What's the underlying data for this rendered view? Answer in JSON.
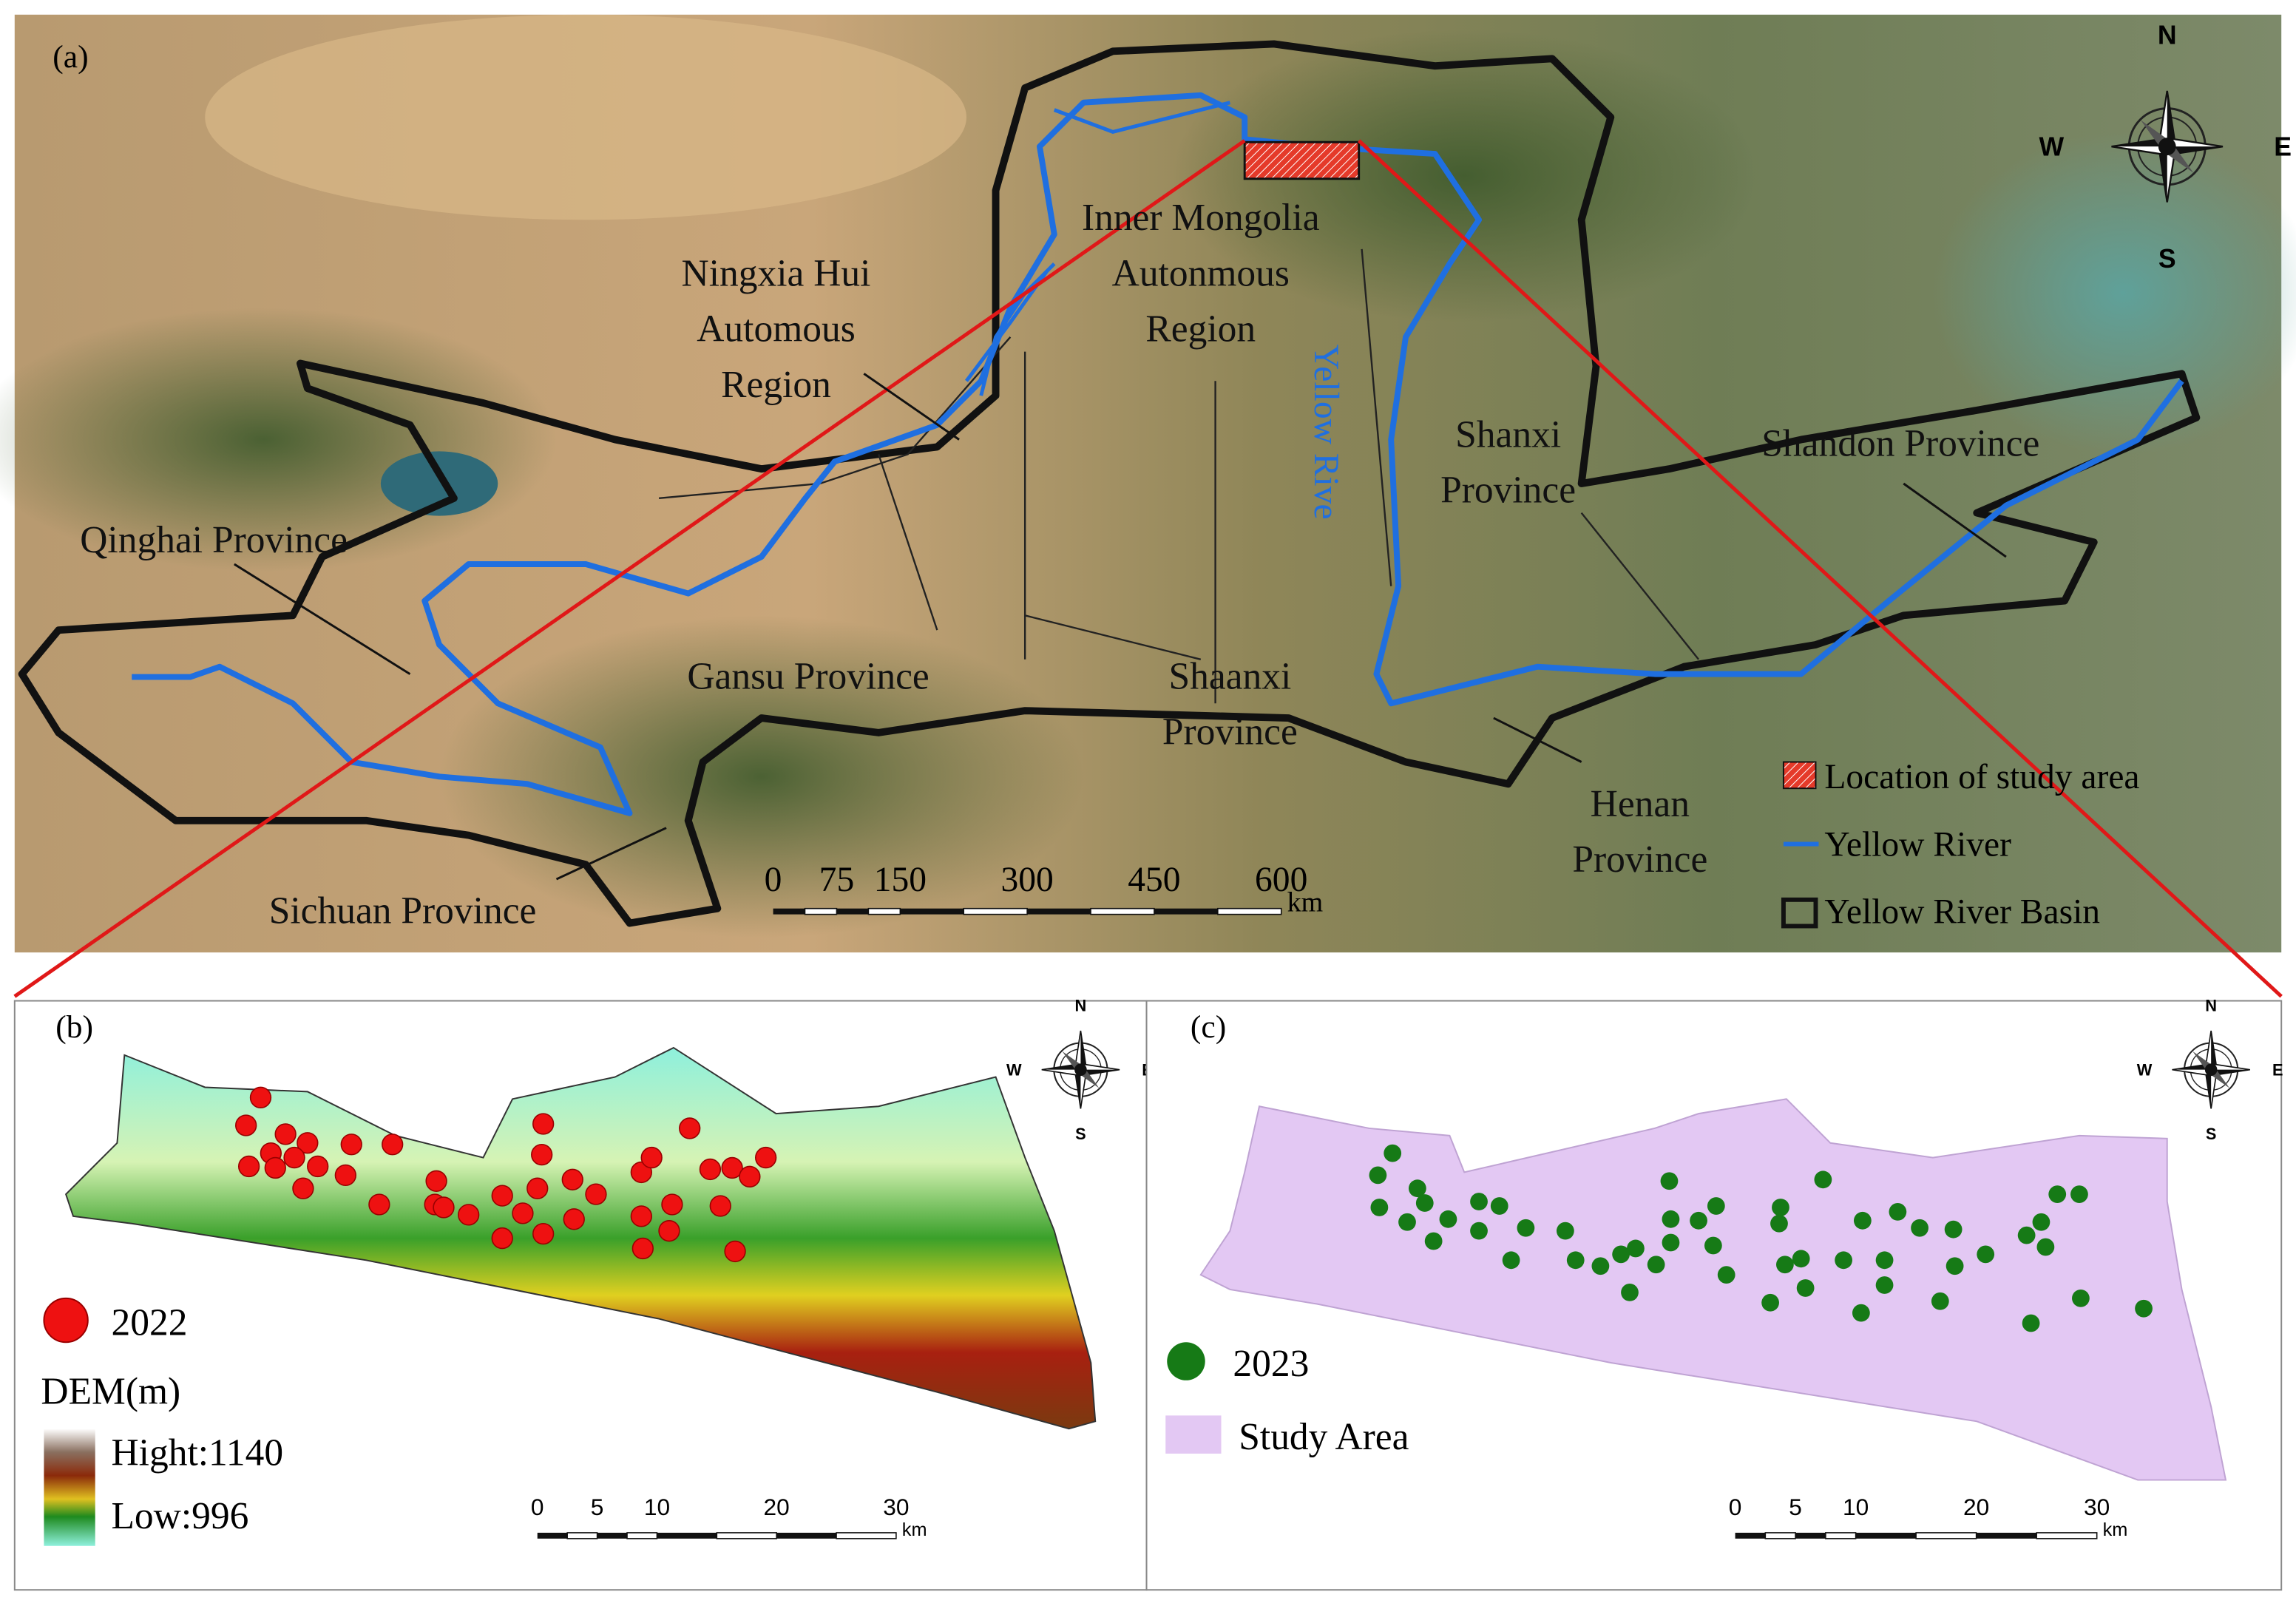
{
  "panel_a": {
    "label": "(a)",
    "regions": [
      {
        "lines": [
          "Inner Mongolia",
          "Autonmous",
          "Region"
        ]
      },
      {
        "lines": [
          "Ningxia Hui",
          "Automous",
          "Region"
        ]
      },
      {
        "lines": [
          "Shanxi",
          "Province"
        ]
      },
      {
        "lines": [
          "Shandon Province"
        ]
      },
      {
        "lines": [
          "Qinghai Province"
        ]
      },
      {
        "lines": [
          "Gansu Province"
        ]
      },
      {
        "lines": [
          "Shaanxi",
          "Province"
        ]
      },
      {
        "lines": [
          "Henan",
          "Province"
        ]
      },
      {
        "lines": [
          "Sichuan Province"
        ]
      }
    ],
    "river_label": "Yellow Rive",
    "compass": {
      "n": "N",
      "s": "S",
      "e": "E",
      "w": "W"
    },
    "scale_bar": {
      "ticks": [
        0,
        75,
        150,
        300,
        450,
        600
      ],
      "unit": "km"
    },
    "legend": [
      "Location of study area",
      "Yellow River",
      "Yellow River Basin"
    ]
  },
  "panel_b": {
    "label": "(b)",
    "points_label": "2022",
    "dem_title": "DEM(m)",
    "dem_high": "Hight:1140",
    "dem_low": "Low:996",
    "compass": {
      "n": "N",
      "s": "S",
      "e": "E",
      "w": "W"
    },
    "scale_bar": {
      "ticks": [
        0,
        5,
        10,
        20,
        30
      ],
      "unit": "km"
    }
  },
  "panel_c": {
    "label": "(c)",
    "points_label": "2023",
    "area_label": "Study Area",
    "compass": {
      "n": "N",
      "s": "S",
      "e": "E",
      "w": "W"
    },
    "scale_bar": {
      "ticks": [
        0,
        5,
        10,
        20,
        30
      ],
      "unit": "km"
    }
  }
}
